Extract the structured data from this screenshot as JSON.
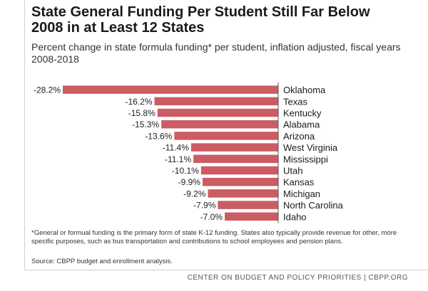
{
  "chart_data": {
    "type": "bar",
    "orientation": "horizontal",
    "title": "State General Funding Per Student Still Far Below 2008 in at Least 12 States",
    "subtitle": "Percent change in state formula funding* per student, inflation adjusted, fiscal years 2008-2018",
    "categories": [
      "Oklahoma",
      "Texas",
      "Kentucky",
      "Alabama",
      "Arizona",
      "West Virginia",
      "Mississippi",
      "Utah",
      "Kansas",
      "Michigan",
      "North Carolina",
      "Idaho"
    ],
    "values": [
      -28.2,
      -16.2,
      -15.8,
      -15.3,
      -13.6,
      -11.4,
      -11.1,
      -10.1,
      -9.9,
      -9.2,
      -7.9,
      -7.0
    ],
    "value_labels": [
      "-28.2%",
      "-16.2%",
      "-15.8%",
      "-15.3%",
      "-13.6%",
      "-11.4%",
      "-11.1%",
      "-10.1%",
      "-9.9%",
      "-9.2%",
      "-7.9%",
      "-7.0%"
    ],
    "xlim": [
      -28.2,
      0
    ],
    "bar_color": "#cc5c63",
    "axis_color": "#555555"
  },
  "footnote": "*General or formual funding is the primary form of state K-12 funding. States also typically provide revenue for other, more specific purposes, such as bus transportation and contributions to school employees and pension plans.",
  "source": "Source: CBPP budget and enrollment analysis.",
  "org": "CENTER ON BUDGET AND POLICY PRIORITIES | CBPP.ORG"
}
